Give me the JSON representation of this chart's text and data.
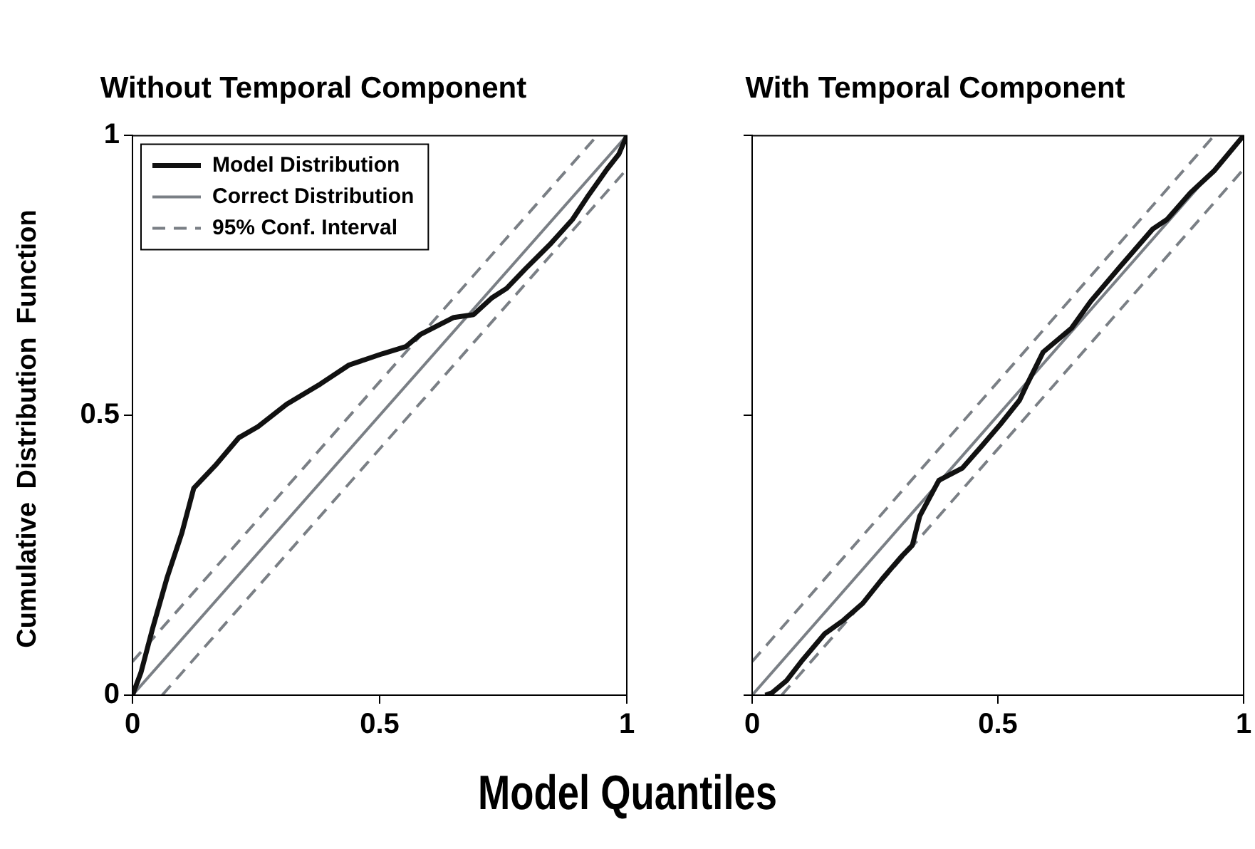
{
  "chart_data": [
    {
      "type": "line",
      "title": "Without Temporal Component",
      "xlabel": "Model Quantiles",
      "ylabel": "Cumulative Distribution Function",
      "xlim": [
        0,
        1
      ],
      "ylim": [
        0,
        1
      ],
      "xticks": [
        0,
        0.5,
        1
      ],
      "yticks": [
        0,
        0.5,
        1
      ],
      "grid": false,
      "legend": "top left",
      "marker": "none",
      "series": [
        {
          "name": "Model Distribution",
          "color": "#111111",
          "line_style": "solid",
          "x": [
            0,
            0.017,
            0.041,
            0.07,
            0.1,
            0.124,
            0.167,
            0.215,
            0.254,
            0.312,
            0.38,
            0.438,
            0.505,
            0.553,
            0.583,
            0.65,
            0.69,
            0.727,
            0.757,
            0.795,
            0.844,
            0.89,
            0.92,
            0.96,
            0.984,
            1
          ],
          "values": [
            0,
            0.04,
            0.12,
            0.21,
            0.29,
            0.37,
            0.41,
            0.46,
            0.48,
            0.52,
            0.556,
            0.59,
            0.61,
            0.623,
            0.645,
            0.675,
            0.68,
            0.71,
            0.727,
            0.762,
            0.805,
            0.85,
            0.89,
            0.94,
            0.967,
            1
          ]
        },
        {
          "name": "Correct Distribution",
          "color": "#7a7f85",
          "line_style": "solid",
          "x": [
            0,
            1
          ],
          "values": [
            0,
            1
          ]
        },
        {
          "name": "95% Conf. Interval",
          "color": "#7a7f85",
          "line_style": "dashed",
          "x": [
            0,
            0.94
          ],
          "values": [
            0.06,
            1
          ]
        },
        {
          "color": "#7a7f85",
          "line_style": "dashed",
          "x": [
            0.06,
            1
          ],
          "values": [
            0,
            0.94
          ]
        }
      ]
    },
    {
      "type": "line",
      "title": "With Temporal Component",
      "xlim": [
        0,
        1
      ],
      "ylim": [
        0,
        1
      ],
      "xticks": [
        0,
        0.5,
        1
      ],
      "yticks": [
        0,
        0.5,
        1
      ],
      "grid": false,
      "legend": false,
      "marker": "none",
      "tick_labels": "x",
      "series": [
        {
          "color": "#111111",
          "line_style": "solid",
          "x": [
            0.027,
            0.04,
            0.07,
            0.1,
            0.148,
            0.186,
            0.225,
            0.264,
            0.302,
            0.326,
            0.341,
            0.38,
            0.428,
            0.467,
            0.505,
            0.544,
            0.558,
            0.592,
            0.65,
            0.689,
            0.747,
            0.815,
            0.844,
            0.892,
            0.94,
            1
          ],
          "values": [
            0,
            0.004,
            0.026,
            0.06,
            0.11,
            0.134,
            0.164,
            0.207,
            0.246,
            0.268,
            0.32,
            0.384,
            0.406,
            0.445,
            0.484,
            0.527,
            0.553,
            0.613,
            0.656,
            0.704,
            0.764,
            0.833,
            0.85,
            0.898,
            0.937,
            1
          ]
        },
        {
          "color": "#7a7f85",
          "line_style": "solid",
          "x": [
            0,
            1
          ],
          "values": [
            0,
            1
          ]
        },
        {
          "color": "#7a7f85",
          "line_style": "dashed",
          "x": [
            0,
            0.94
          ],
          "values": [
            0.06,
            1
          ]
        },
        {
          "color": "#7a7f85",
          "line_style": "dashed",
          "x": [
            0.06,
            1
          ],
          "values": [
            0,
            0.94
          ]
        }
      ]
    }
  ]
}
